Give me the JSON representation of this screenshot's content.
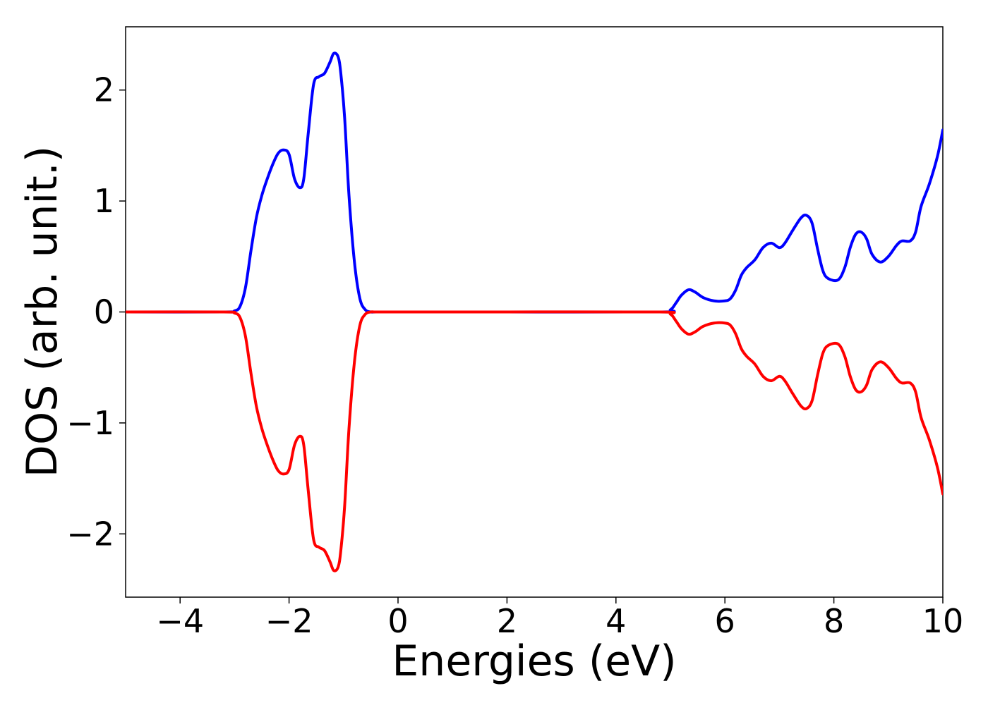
{
  "chart_data": {
    "type": "line",
    "title": "",
    "xlabel": "Energies (eV)",
    "ylabel": "DOS (arb. unit.)",
    "xlim": [
      -5,
      10
    ],
    "ylim": [
      -2.57,
      2.57
    ],
    "grid": false,
    "legend": "none",
    "x_ticks": [
      -4,
      -2,
      0,
      2,
      4,
      6,
      8,
      10
    ],
    "x_tick_labels": [
      "−4",
      "−2",
      "0",
      "2",
      "4",
      "6",
      "8",
      "10"
    ],
    "y_ticks": [
      -2,
      -1,
      0,
      1,
      2
    ],
    "y_tick_labels": [
      "−2",
      "−1",
      "0",
      "1",
      "2"
    ],
    "series": [
      {
        "color": "#0000ff",
        "x": [
          -5.0,
          -3.2,
          -3.0,
          -2.9,
          -2.8,
          -2.7,
          -2.6,
          -2.5,
          -2.4,
          -2.3,
          -2.2,
          -2.1,
          -2.0,
          -1.9,
          -1.8,
          -1.73,
          -1.65,
          -1.55,
          -1.45,
          -1.35,
          -1.25,
          -1.18,
          -1.1,
          -1.05,
          -0.98,
          -0.9,
          -0.8,
          -0.7,
          -0.6,
          -0.5,
          -0.4,
          0.0,
          2.0,
          4.8,
          5.0,
          5.1,
          5.2,
          5.33,
          5.45,
          5.6,
          5.8,
          6.0,
          6.1,
          6.2,
          6.3,
          6.4,
          6.55,
          6.7,
          6.85,
          7.0,
          7.1,
          7.25,
          7.4,
          7.5,
          7.6,
          7.7,
          7.8,
          7.9,
          8.08,
          8.2,
          8.3,
          8.4,
          8.5,
          8.6,
          8.7,
          8.85,
          9.0,
          9.15,
          9.25,
          9.4,
          9.5,
          9.6,
          9.75,
          9.9,
          10.0
        ],
        "values": [
          0.0,
          0.0,
          0.01,
          0.05,
          0.22,
          0.55,
          0.85,
          1.05,
          1.2,
          1.33,
          1.43,
          1.46,
          1.42,
          1.2,
          1.12,
          1.2,
          1.6,
          2.05,
          2.12,
          2.15,
          2.25,
          2.33,
          2.3,
          2.15,
          1.75,
          1.05,
          0.45,
          0.12,
          0.02,
          0.0,
          0.0,
          0.0,
          0.0,
          0.0,
          0.02,
          0.08,
          0.15,
          0.2,
          0.18,
          0.13,
          0.1,
          0.1,
          0.12,
          0.2,
          0.33,
          0.4,
          0.47,
          0.58,
          0.62,
          0.58,
          0.62,
          0.74,
          0.85,
          0.87,
          0.8,
          0.57,
          0.37,
          0.3,
          0.29,
          0.4,
          0.58,
          0.7,
          0.72,
          0.66,
          0.52,
          0.45,
          0.5,
          0.6,
          0.64,
          0.64,
          0.72,
          0.95,
          1.15,
          1.4,
          1.64
        ]
      },
      {
        "color": "#ff0000",
        "x": [
          -5.0,
          -3.2,
          -3.0,
          -2.9,
          -2.8,
          -2.7,
          -2.6,
          -2.5,
          -2.4,
          -2.3,
          -2.2,
          -2.1,
          -2.0,
          -1.9,
          -1.8,
          -1.73,
          -1.65,
          -1.55,
          -1.45,
          -1.35,
          -1.25,
          -1.18,
          -1.1,
          -1.05,
          -0.98,
          -0.9,
          -0.8,
          -0.7,
          -0.6,
          -0.5,
          -0.4,
          0.0,
          2.0,
          4.8,
          5.0,
          5.1,
          5.2,
          5.33,
          5.45,
          5.6,
          5.8,
          6.0,
          6.1,
          6.2,
          6.3,
          6.4,
          6.55,
          6.7,
          6.85,
          7.0,
          7.1,
          7.25,
          7.4,
          7.5,
          7.6,
          7.7,
          7.8,
          7.9,
          8.08,
          8.2,
          8.3,
          8.4,
          8.5,
          8.6,
          8.7,
          8.85,
          9.0,
          9.15,
          9.25,
          9.4,
          9.5,
          9.6,
          9.75,
          9.9,
          10.0
        ],
        "values": [
          0.0,
          0.0,
          -0.01,
          -0.05,
          -0.22,
          -0.55,
          -0.85,
          -1.05,
          -1.2,
          -1.33,
          -1.43,
          -1.46,
          -1.42,
          -1.2,
          -1.12,
          -1.2,
          -1.6,
          -2.05,
          -2.12,
          -2.15,
          -2.25,
          -2.33,
          -2.3,
          -2.15,
          -1.75,
          -1.05,
          -0.45,
          -0.12,
          -0.02,
          0.0,
          0.0,
          0.0,
          0.0,
          0.0,
          -0.02,
          -0.08,
          -0.15,
          -0.2,
          -0.18,
          -0.13,
          -0.1,
          -0.1,
          -0.12,
          -0.2,
          -0.33,
          -0.4,
          -0.47,
          -0.58,
          -0.62,
          -0.58,
          -0.62,
          -0.74,
          -0.85,
          -0.87,
          -0.8,
          -0.57,
          -0.37,
          -0.3,
          -0.29,
          -0.4,
          -0.58,
          -0.7,
          -0.72,
          -0.66,
          -0.52,
          -0.45,
          -0.5,
          -0.6,
          -0.64,
          -0.64,
          -0.72,
          -0.95,
          -1.15,
          -1.4,
          -1.64
        ]
      }
    ]
  }
}
